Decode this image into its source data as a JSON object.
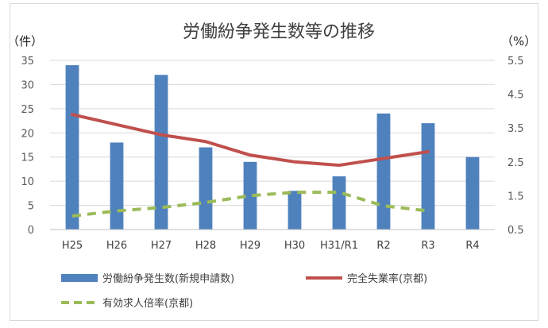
{
  "chart_data": {
    "type": "bar",
    "title": "労働紛争発生数等の推移",
    "y_left_label": "（件）",
    "y_right_label": "（%）",
    "categories": [
      "H25",
      "H26",
      "H27",
      "H28",
      "H29",
      "H30",
      "H31/R1",
      "R2",
      "R3",
      "R4"
    ],
    "y_left": {
      "min": 0,
      "max": 35,
      "ticks": [
        0,
        5,
        10,
        15,
        20,
        25,
        30,
        35
      ]
    },
    "y_right": {
      "min": 0.5,
      "max": 5.5,
      "ticks": [
        "0.5",
        "1.5",
        "2.5",
        "3.5",
        "4.5",
        "5.5"
      ]
    },
    "grid": true,
    "legend_position": "bottom",
    "series": [
      {
        "name": "労働紛争発生数(新規申請数)",
        "type": "bar",
        "axis": "left",
        "color": "#4f81bd",
        "values": [
          34,
          18,
          32,
          17,
          14,
          8,
          11,
          24,
          22,
          15
        ]
      },
      {
        "name": "完全失業率(京都)",
        "type": "line",
        "axis": "right",
        "color": "#c0504d",
        "values": [
          3.9,
          3.6,
          3.3,
          3.1,
          2.7,
          2.5,
          2.4,
          2.6,
          2.8,
          null
        ]
      },
      {
        "name": "有効求人倍率(京都)",
        "type": "dashed-line",
        "axis": "right",
        "color": "#9bbb59",
        "values": [
          0.9,
          1.05,
          1.15,
          1.3,
          1.5,
          1.6,
          1.6,
          1.2,
          1.05,
          null
        ]
      }
    ]
  }
}
